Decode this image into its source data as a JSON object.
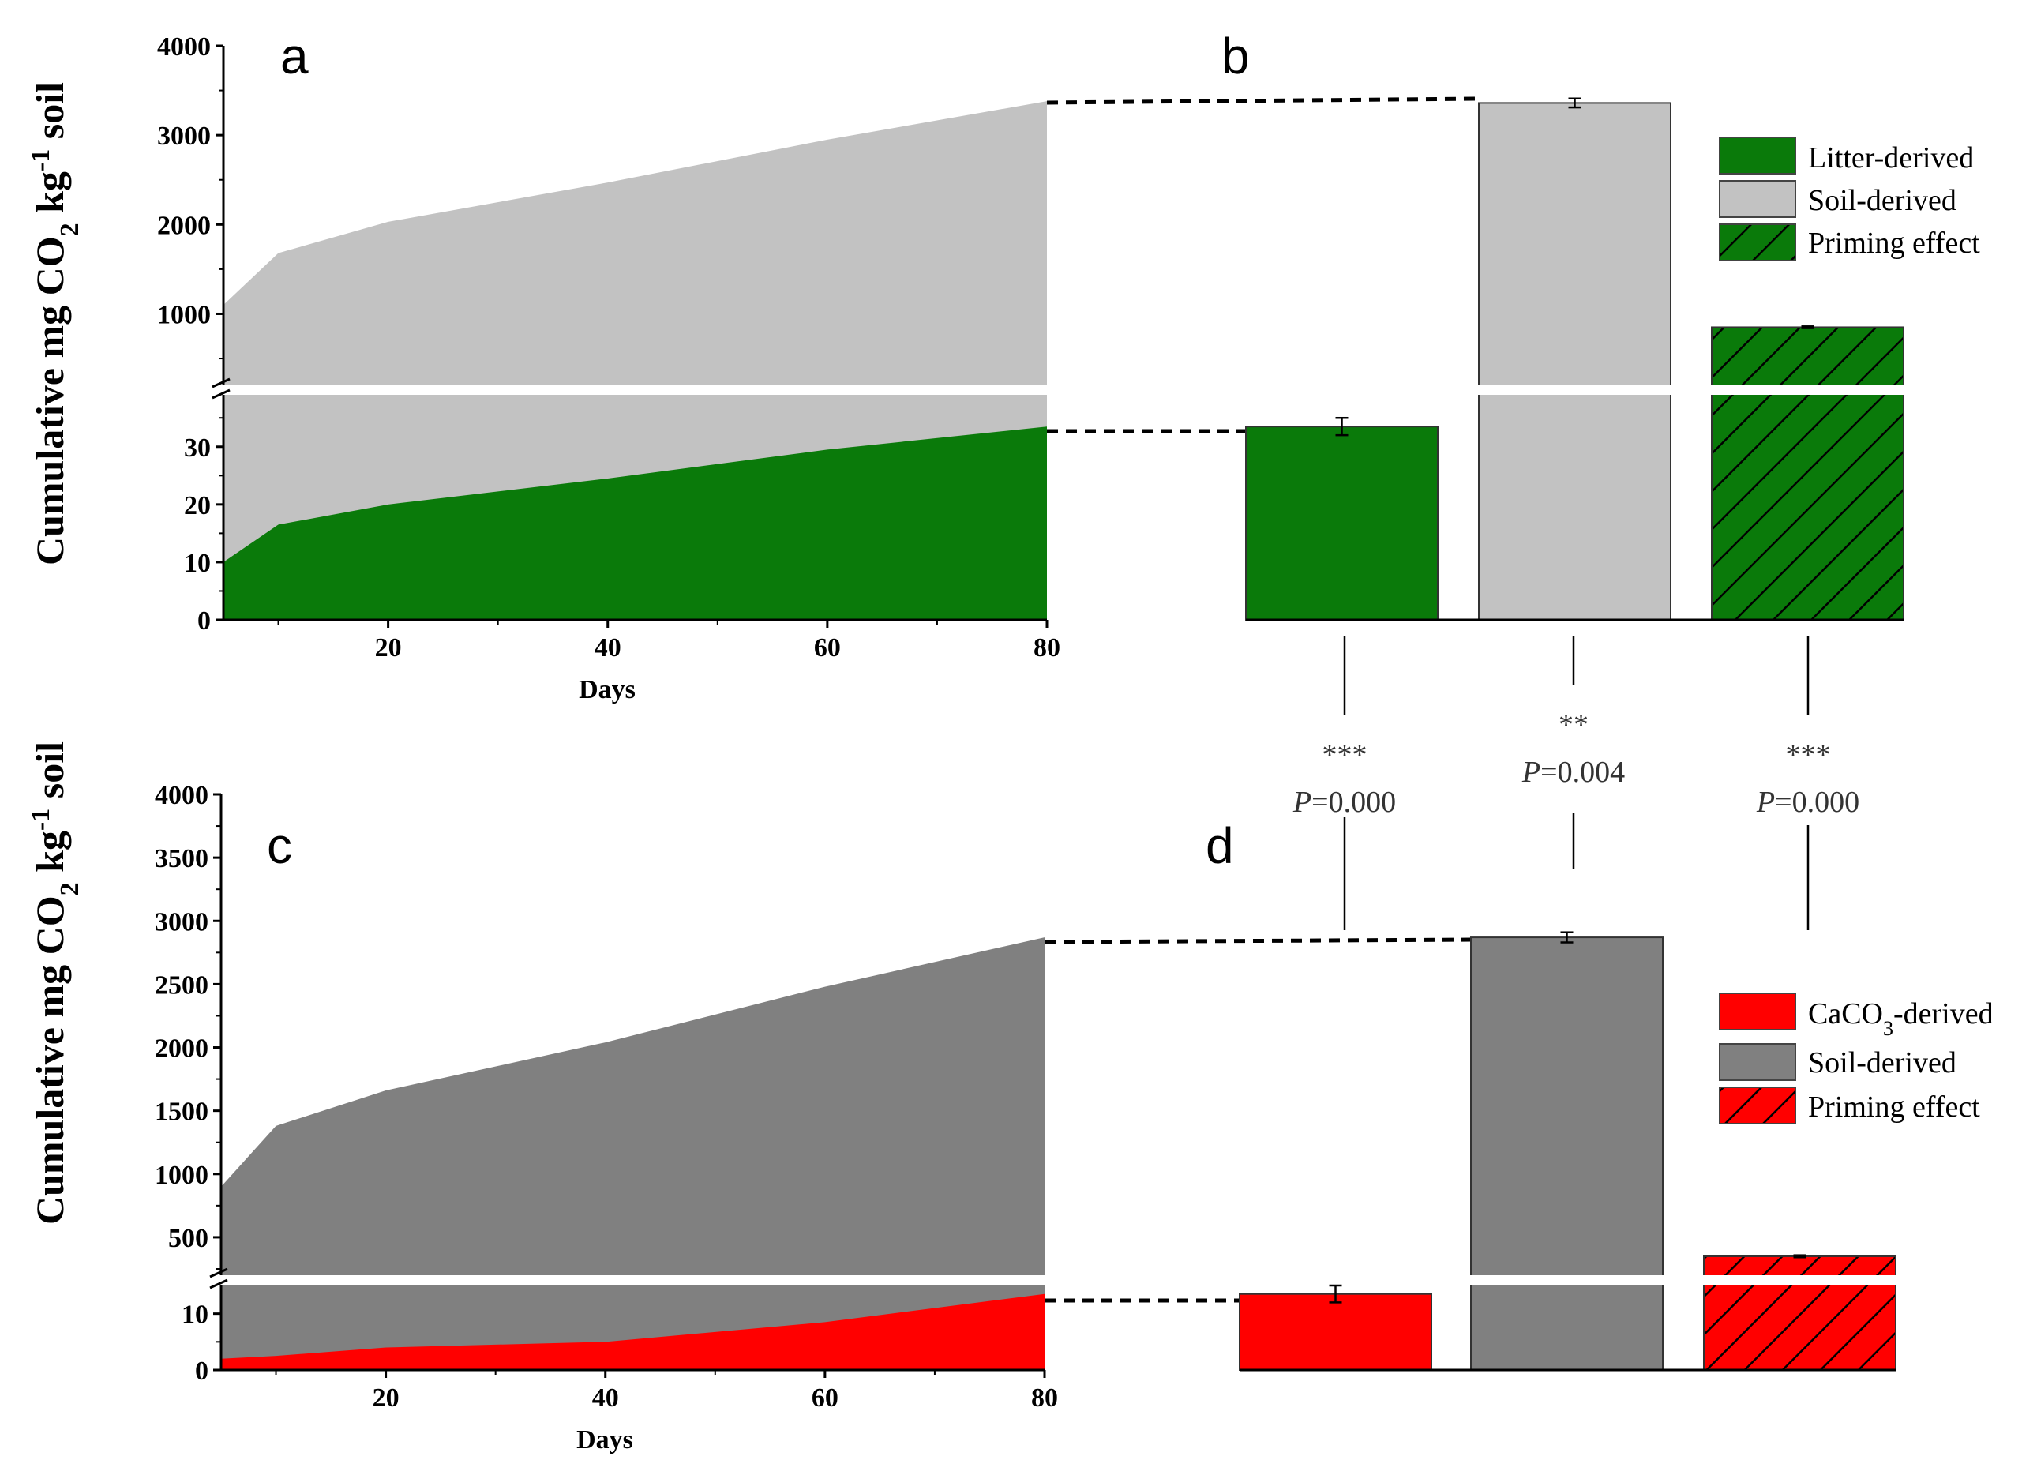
{
  "chart_data": [
    {
      "panel": "a",
      "type": "area",
      "x": [
        5,
        10,
        20,
        40,
        60,
        80
      ],
      "series": [
        {
          "name": "Soil-derived",
          "color": "#c2c2c2",
          "values_upper": [
            1100,
            1680,
            2030,
            2470,
            2950,
            3380
          ]
        },
        {
          "name": "Litter-derived",
          "color": "#0a7a0a",
          "values_lower": [
            10,
            16.5,
            20,
            24.5,
            29.5,
            33.5
          ]
        }
      ],
      "xlabel": "Days",
      "ylabel_parts": [
        "Cumulative mg CO",
        "2",
        " kg",
        "-1",
        " soil"
      ],
      "x_ticks": [
        "20",
        "40",
        "60",
        "80"
      ],
      "y_ticks_upper": [
        "1000",
        "2000",
        "3000",
        "4000"
      ],
      "y_ticks_lower": [
        "0",
        "10",
        "20",
        "30"
      ],
      "y_break": true
    },
    {
      "panel": "b",
      "type": "bar",
      "categories": [
        "Litter-derived",
        "Soil-derived",
        "Priming effect"
      ],
      "values": [
        33.5,
        3360,
        850
      ],
      "errors": [
        1.5,
        50,
        10
      ],
      "legend": [
        "Litter-derived",
        "Soil-derived",
        "Priming effect"
      ]
    },
    {
      "panel": "c",
      "type": "area",
      "x": [
        5,
        10,
        20,
        40,
        60,
        80
      ],
      "series": [
        {
          "name": "Soil-derived",
          "color": "#808080",
          "values_upper": [
            900,
            1380,
            1660,
            2040,
            2480,
            2870
          ]
        },
        {
          "name": "CaCO3-derived",
          "color": "#ff0000",
          "values_lower": [
            2,
            2.5,
            4,
            5,
            8.5,
            13.5
          ]
        }
      ],
      "xlabel": "Days",
      "ylabel_parts": [
        "Cumulative mg CO",
        "2",
        " kg",
        "-1",
        " soil"
      ],
      "x_ticks": [
        "20",
        "40",
        "60",
        "80"
      ],
      "y_ticks_upper": [
        "500",
        "1000",
        "1500",
        "2000",
        "2500",
        "3000",
        "3500",
        "4000"
      ],
      "y_ticks_lower": [
        "0",
        "10"
      ],
      "y_break": true
    },
    {
      "panel": "d",
      "type": "bar",
      "categories": [
        "CaCO3-derived",
        "Soil-derived",
        "Priming effect"
      ],
      "values": [
        13.5,
        2870,
        350
      ],
      "errors": [
        1.5,
        40,
        8
      ],
      "legend_parts": [
        [
          "CaCO",
          "3",
          "-derived"
        ],
        [
          "Soil-derived"
        ],
        [
          "Priming effect"
        ]
      ]
    }
  ],
  "panels": {
    "a": "a",
    "b": "b",
    "c": "c",
    "d": "d"
  },
  "stats": [
    {
      "stars": "***",
      "p_label": "P",
      "p_value": "=0.000"
    },
    {
      "stars": "**",
      "p_label": "P",
      "p_value": "=0.004"
    },
    {
      "stars": "***",
      "p_label": "P",
      "p_value": "=0.000"
    }
  ]
}
